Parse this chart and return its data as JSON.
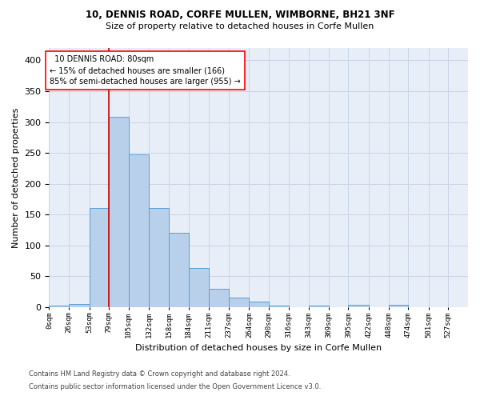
{
  "title1": "10, DENNIS ROAD, CORFE MULLEN, WIMBORNE, BH21 3NF",
  "title2": "Size of property relative to detached houses in Corfe Mullen",
  "xlabel": "Distribution of detached houses by size in Corfe Mullen",
  "ylabel": "Number of detached properties",
  "footnote1": "Contains HM Land Registry data © Crown copyright and database right 2024.",
  "footnote2": "Contains public sector information licensed under the Open Government Licence v3.0.",
  "bin_labels": [
    "0sqm",
    "26sqm",
    "53sqm",
    "79sqm",
    "105sqm",
    "132sqm",
    "158sqm",
    "184sqm",
    "211sqm",
    "237sqm",
    "264sqm",
    "290sqm",
    "316sqm",
    "343sqm",
    "369sqm",
    "395sqm",
    "422sqm",
    "448sqm",
    "474sqm",
    "501sqm",
    "527sqm"
  ],
  "bar_heights": [
    2,
    5,
    160,
    308,
    247,
    161,
    121,
    64,
    30,
    15,
    9,
    3,
    0,
    3,
    0,
    4,
    0,
    4,
    0,
    0,
    0
  ],
  "bar_color": "#b8d0ea",
  "bar_edge_color": "#5a9fd4",
  "grid_color": "#c8d4e8",
  "background_color": "#e8eef8",
  "vline_color": "#cc0000",
  "property_label": "10 DENNIS ROAD: 80sqm",
  "smaller_pct": 15,
  "smaller_count": 166,
  "larger_pct": 85,
  "larger_count": 955,
  "vline_x": 79,
  "ylim": [
    0,
    420
  ],
  "yticks": [
    0,
    50,
    100,
    150,
    200,
    250,
    300,
    350,
    400
  ],
  "bin_edges": [
    0,
    26,
    53,
    79,
    105,
    132,
    158,
    184,
    211,
    237,
    264,
    290,
    316,
    343,
    369,
    395,
    422,
    448,
    474,
    501,
    527,
    553
  ]
}
